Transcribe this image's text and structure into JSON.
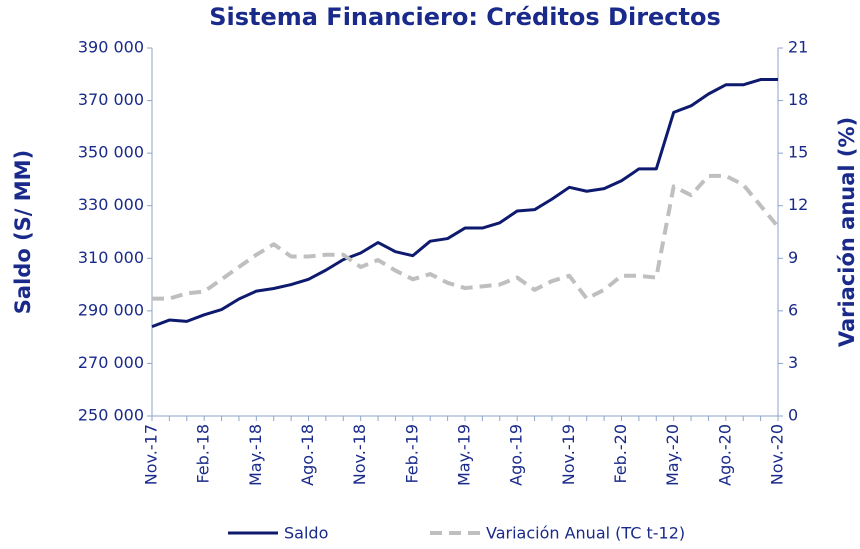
{
  "chart_data": {
    "type": "line",
    "title": "Sistema Financiero: Créditos Directos",
    "ylabel": "Saldo (S/ MM)",
    "y2label": "Variación anual (%)",
    "categories": [
      "Nov.-17",
      null,
      null,
      "Feb.-18",
      null,
      null,
      "May.-18",
      null,
      null,
      "Ago.-18",
      null,
      null,
      "Nov.-18",
      null,
      null,
      "Feb.-19",
      null,
      null,
      "May.-19",
      null,
      null,
      "Ago.-19",
      null,
      null,
      "Nov.-19",
      null,
      null,
      "Feb.-20",
      null,
      null,
      "May.-20",
      null,
      null,
      "Ago.-20",
      null,
      null,
      "Nov.-20"
    ],
    "series": [
      {
        "name": "Saldo",
        "color": "#0d1a6e",
        "dashed": false,
        "values": [
          284000,
          286500,
          286000,
          288500,
          290500,
          294500,
          297500,
          298500,
          300000,
          302000,
          305500,
          309500,
          312000,
          316000,
          312500,
          311000,
          316500,
          317500,
          321500,
          321500,
          323500,
          328000,
          328500,
          332500,
          337000,
          335500,
          336500,
          339500,
          344000,
          344000,
          365500,
          368000,
          372500,
          376000,
          376000,
          378000,
          378000
        ]
      },
      {
        "name": "Variación Anual (TC t-12)",
        "color": "#bfbfbf",
        "dashed": true,
        "axis": "y2",
        "values": [
          6.7,
          6.7,
          7.0,
          7.1,
          7.8,
          8.5,
          9.2,
          9.8,
          9.1,
          9.1,
          9.2,
          9.2,
          8.5,
          8.9,
          8.3,
          7.8,
          8.1,
          7.6,
          7.3,
          7.4,
          7.5,
          7.9,
          7.2,
          7.7,
          8.0,
          6.7,
          7.2,
          8.0,
          8.0,
          7.9,
          13.1,
          12.6,
          13.7,
          13.7,
          13.2,
          12.0,
          10.8
        ]
      }
    ],
    "ylim": [
      250000,
      390000
    ],
    "yticks": [
      {
        "value": 250000,
        "label": "250 000"
      },
      {
        "value": 270000,
        "label": "270 000"
      },
      {
        "value": 290000,
        "label": "290 000"
      },
      {
        "value": 310000,
        "label": "310 000"
      },
      {
        "value": 330000,
        "label": "330 000"
      },
      {
        "value": 350000,
        "label": "350 000"
      },
      {
        "value": 370000,
        "label": "370 000"
      },
      {
        "value": 390000,
        "label": "390 000"
      }
    ],
    "y2lim": [
      0,
      21
    ],
    "y2ticks": [
      0,
      3,
      6,
      9,
      12,
      15,
      18,
      21
    ],
    "grid": false,
    "legend": "bottom"
  }
}
